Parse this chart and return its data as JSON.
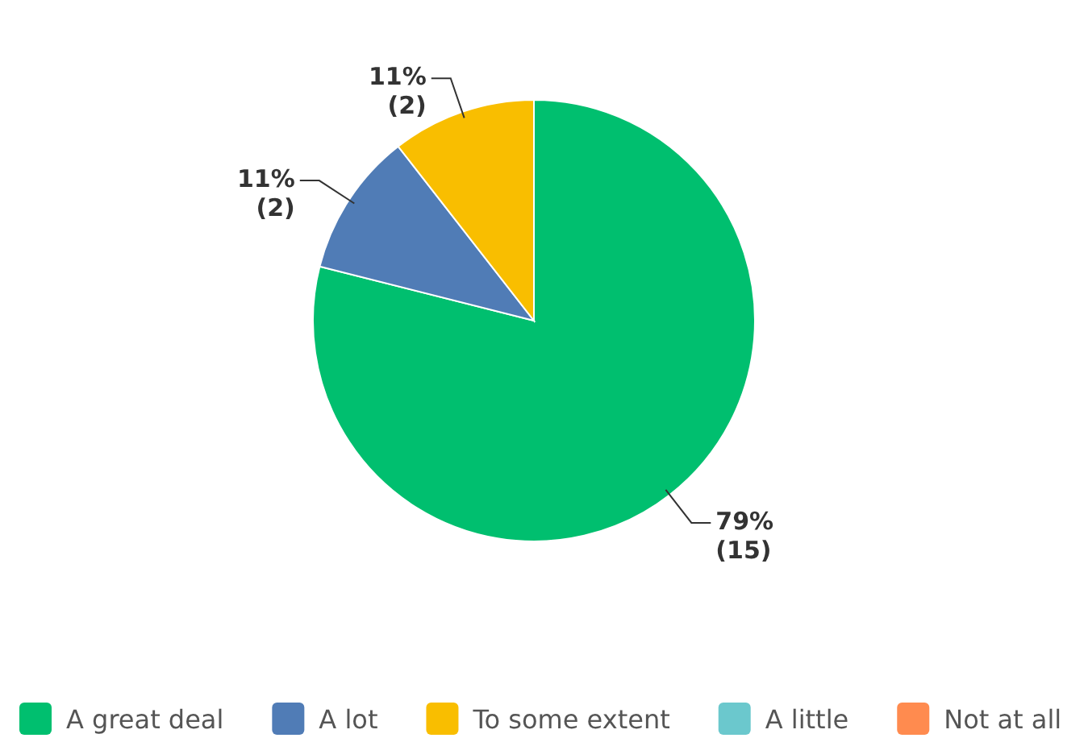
{
  "chart_data": {
    "type": "pie",
    "categories": [
      "A great deal",
      "A lot",
      "To some extent",
      "A little",
      "Not at all"
    ],
    "values": [
      15,
      2,
      2,
      0,
      0
    ],
    "colors": [
      "#00bf6f",
      "#507cb6",
      "#f9be00",
      "#6bc8cd",
      "#ff8b4f"
    ],
    "value_labels": [
      "79%\n(15)",
      "11%\n(2)",
      "11%\n(2)",
      null,
      null
    ],
    "legend": "bottom"
  }
}
